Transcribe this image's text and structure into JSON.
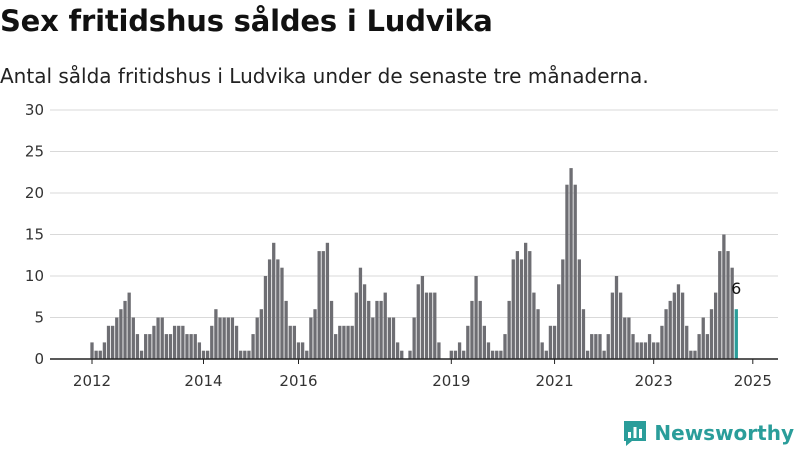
{
  "title": "Sex fritidshus såldes i Ludvika",
  "subtitle": "Antal sålda fritidshus i Ludvika under de senaste tre månaderna.",
  "brand": {
    "name": "Newsworthy",
    "color": "#2a9d9a",
    "icon": "newsworthy-logo-icon"
  },
  "colors": {
    "bar": "#6e6e73",
    "highlight": "#2a9d9a",
    "grid": "#d9d9d9",
    "axis": "#222222"
  },
  "chart_data": {
    "type": "bar",
    "title": "Sex fritidshus såldes i Ludvika",
    "subtitle": "Antal sålda fritidshus i Ludvika under de senaste tre månaderna.",
    "xlabel": "",
    "ylabel": "",
    "ylim": [
      0,
      30
    ],
    "yticks": [
      "0",
      "5",
      "10",
      "15",
      "20",
      "25",
      "30"
    ],
    "xticks": [
      {
        "label": "2012",
        "index": 0
      },
      {
        "label": "2014",
        "index": 27
      },
      {
        "label": "2016",
        "index": 50
      },
      {
        "label": "2019",
        "index": 87
      },
      {
        "label": "2021",
        "index": 112
      },
      {
        "label": "2023",
        "index": 136
      },
      {
        "label": "2025",
        "index": 160
      }
    ],
    "x": [
      "2012-01",
      "2012-02",
      "2012-03",
      "2012-04",
      "2012-05",
      "2012-06",
      "2012-07",
      "2012-08",
      "2012-09",
      "2012-10",
      "2012-11",
      "2012-12",
      "2013-01",
      "2013-02",
      "2013-03",
      "2013-04",
      "2013-05",
      "2013-06",
      "2013-07",
      "2013-08",
      "2013-09",
      "2013-10",
      "2013-11",
      "2013-12",
      "2014-01",
      "2014-02",
      "2014-03",
      "2014-04",
      "2014-05",
      "2014-06",
      "2014-07",
      "2014-08",
      "2014-09",
      "2014-10",
      "2014-11",
      "2014-12",
      "2015-01",
      "2015-02",
      "2015-03",
      "2015-04",
      "2015-05",
      "2015-06",
      "2015-07",
      "2015-08",
      "2015-09",
      "2015-10",
      "2015-11",
      "2015-12",
      "2016-01",
      "2016-02",
      "2016-03",
      "2016-04",
      "2016-05",
      "2016-06",
      "2016-07",
      "2016-08",
      "2016-09",
      "2016-10",
      "2016-11",
      "2016-12",
      "2017-01",
      "2017-02",
      "2017-03",
      "2017-04",
      "2017-05",
      "2017-06",
      "2017-07",
      "2017-08",
      "2017-09",
      "2017-10",
      "2017-11",
      "2017-12",
      "2018-01",
      "2018-02",
      "2018-03",
      "2018-04",
      "2018-05",
      "2018-06",
      "2018-07",
      "2018-08",
      "2018-09",
      "2018-10",
      "2018-11",
      "2018-12",
      "2019-01",
      "2019-02",
      "2019-03",
      "2019-04",
      "2019-05",
      "2019-06",
      "2019-07",
      "2019-08",
      "2019-09",
      "2019-10",
      "2019-11",
      "2019-12",
      "2020-01",
      "2020-02",
      "2020-03",
      "2020-04",
      "2020-05",
      "2020-06",
      "2020-07",
      "2020-08",
      "2020-09",
      "2020-10",
      "2020-11",
      "2020-12",
      "2021-01",
      "2021-02",
      "2021-03",
      "2021-04",
      "2021-05",
      "2021-06",
      "2021-07",
      "2021-08",
      "2021-09",
      "2021-10",
      "2021-11",
      "2021-12",
      "2022-01",
      "2022-02",
      "2022-03",
      "2022-04",
      "2022-05",
      "2022-06",
      "2022-07",
      "2022-08",
      "2022-09",
      "2022-10",
      "2022-11",
      "2022-12",
      "2023-01",
      "2023-02",
      "2023-03",
      "2023-04",
      "2023-05",
      "2023-06",
      "2023-07",
      "2023-08",
      "2023-09",
      "2023-10",
      "2023-11",
      "2023-12",
      "2024-01",
      "2024-02",
      "2024-03",
      "2024-04",
      "2024-05",
      "2024-06",
      "2024-07",
      "2024-08",
      "2024-09",
      "2024-10",
      "2024-11",
      "2024-12",
      "2025-01"
    ],
    "values": [
      2,
      1,
      1,
      2,
      4,
      4,
      5,
      6,
      7,
      8,
      5,
      3,
      1,
      3,
      3,
      4,
      5,
      5,
      3,
      3,
      4,
      4,
      4,
      3,
      3,
      3,
      2,
      1,
      1,
      4,
      6,
      5,
      5,
      5,
      5,
      4,
      1,
      1,
      1,
      3,
      5,
      6,
      10,
      12,
      14,
      12,
      11,
      7,
      4,
      4,
      2,
      2,
      1,
      5,
      6,
      13,
      13,
      14,
      7,
      3,
      4,
      4,
      4,
      4,
      8,
      11,
      9,
      7,
      5,
      7,
      7,
      8,
      5,
      5,
      2,
      1,
      0,
      1,
      5,
      9,
      10,
      8,
      8,
      8,
      2,
      0,
      0,
      1,
      1,
      2,
      1,
      4,
      7,
      10,
      7,
      4,
      2,
      1,
      1,
      1,
      3,
      7,
      12,
      13,
      12,
      14,
      13,
      8,
      6,
      2,
      1,
      4,
      4,
      9,
      12,
      21,
      23,
      21,
      12,
      6,
      1,
      3,
      3,
      3,
      1,
      3,
      8,
      10,
      8,
      5,
      5,
      3,
      2,
      2,
      2,
      3,
      2,
      2,
      4,
      6,
      7,
      8,
      9,
      8,
      4,
      1,
      1,
      3,
      5,
      3,
      6,
      8,
      13,
      15,
      13,
      11,
      6
    ],
    "highlight_index": 156,
    "highlight_label": "6"
  }
}
